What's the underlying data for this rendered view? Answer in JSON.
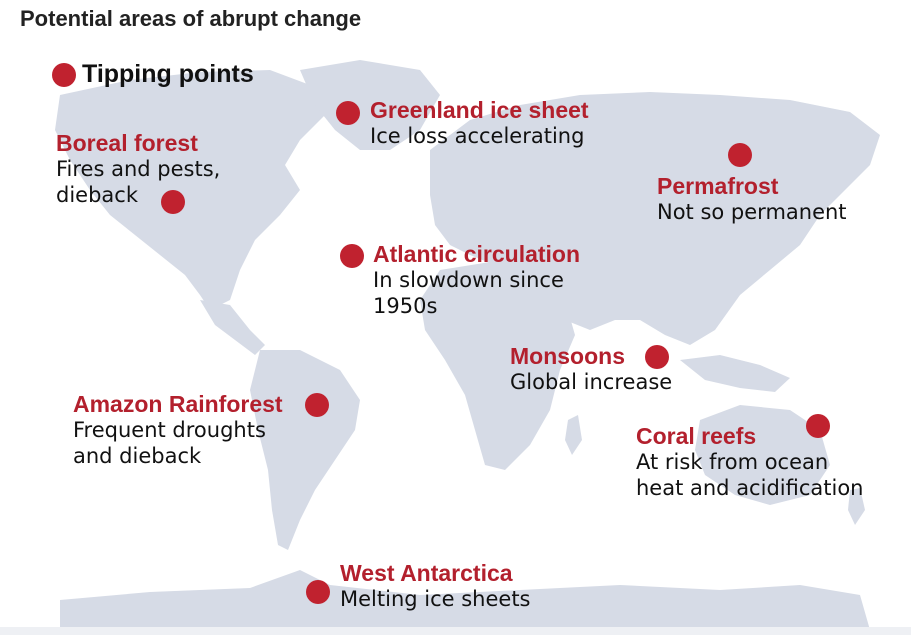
{
  "title": "Potential areas of abrupt change",
  "legend": {
    "label": "Tipping points",
    "marker": "red-dot"
  },
  "colors": {
    "marker": "#c0222f",
    "label_name": "#b3202d",
    "land": "#d6dbe6",
    "text": "#111111"
  },
  "tipping_points": [
    {
      "name": "Boreal forest",
      "desc_lines": [
        "Fires and pests,",
        "dieback"
      ]
    },
    {
      "name": "Greenland ice sheet",
      "desc_lines": [
        "Ice loss accelerating"
      ]
    },
    {
      "name": "Permafrost",
      "desc_lines": [
        "Not so permanent"
      ]
    },
    {
      "name": "Atlantic circulation",
      "desc_lines": [
        "In slowdown since",
        "1950s"
      ]
    },
    {
      "name": "Monsoons",
      "desc_lines": [
        "Global increase"
      ]
    },
    {
      "name": "Amazon Rainforest",
      "desc_lines": [
        "Frequent droughts",
        "and dieback"
      ]
    },
    {
      "name": "Coral reefs",
      "desc_lines": [
        "At risk from ocean",
        "heat and acidification"
      ]
    },
    {
      "name": "West Antarctica",
      "desc_lines": [
        "Melting ice sheets"
      ]
    }
  ]
}
